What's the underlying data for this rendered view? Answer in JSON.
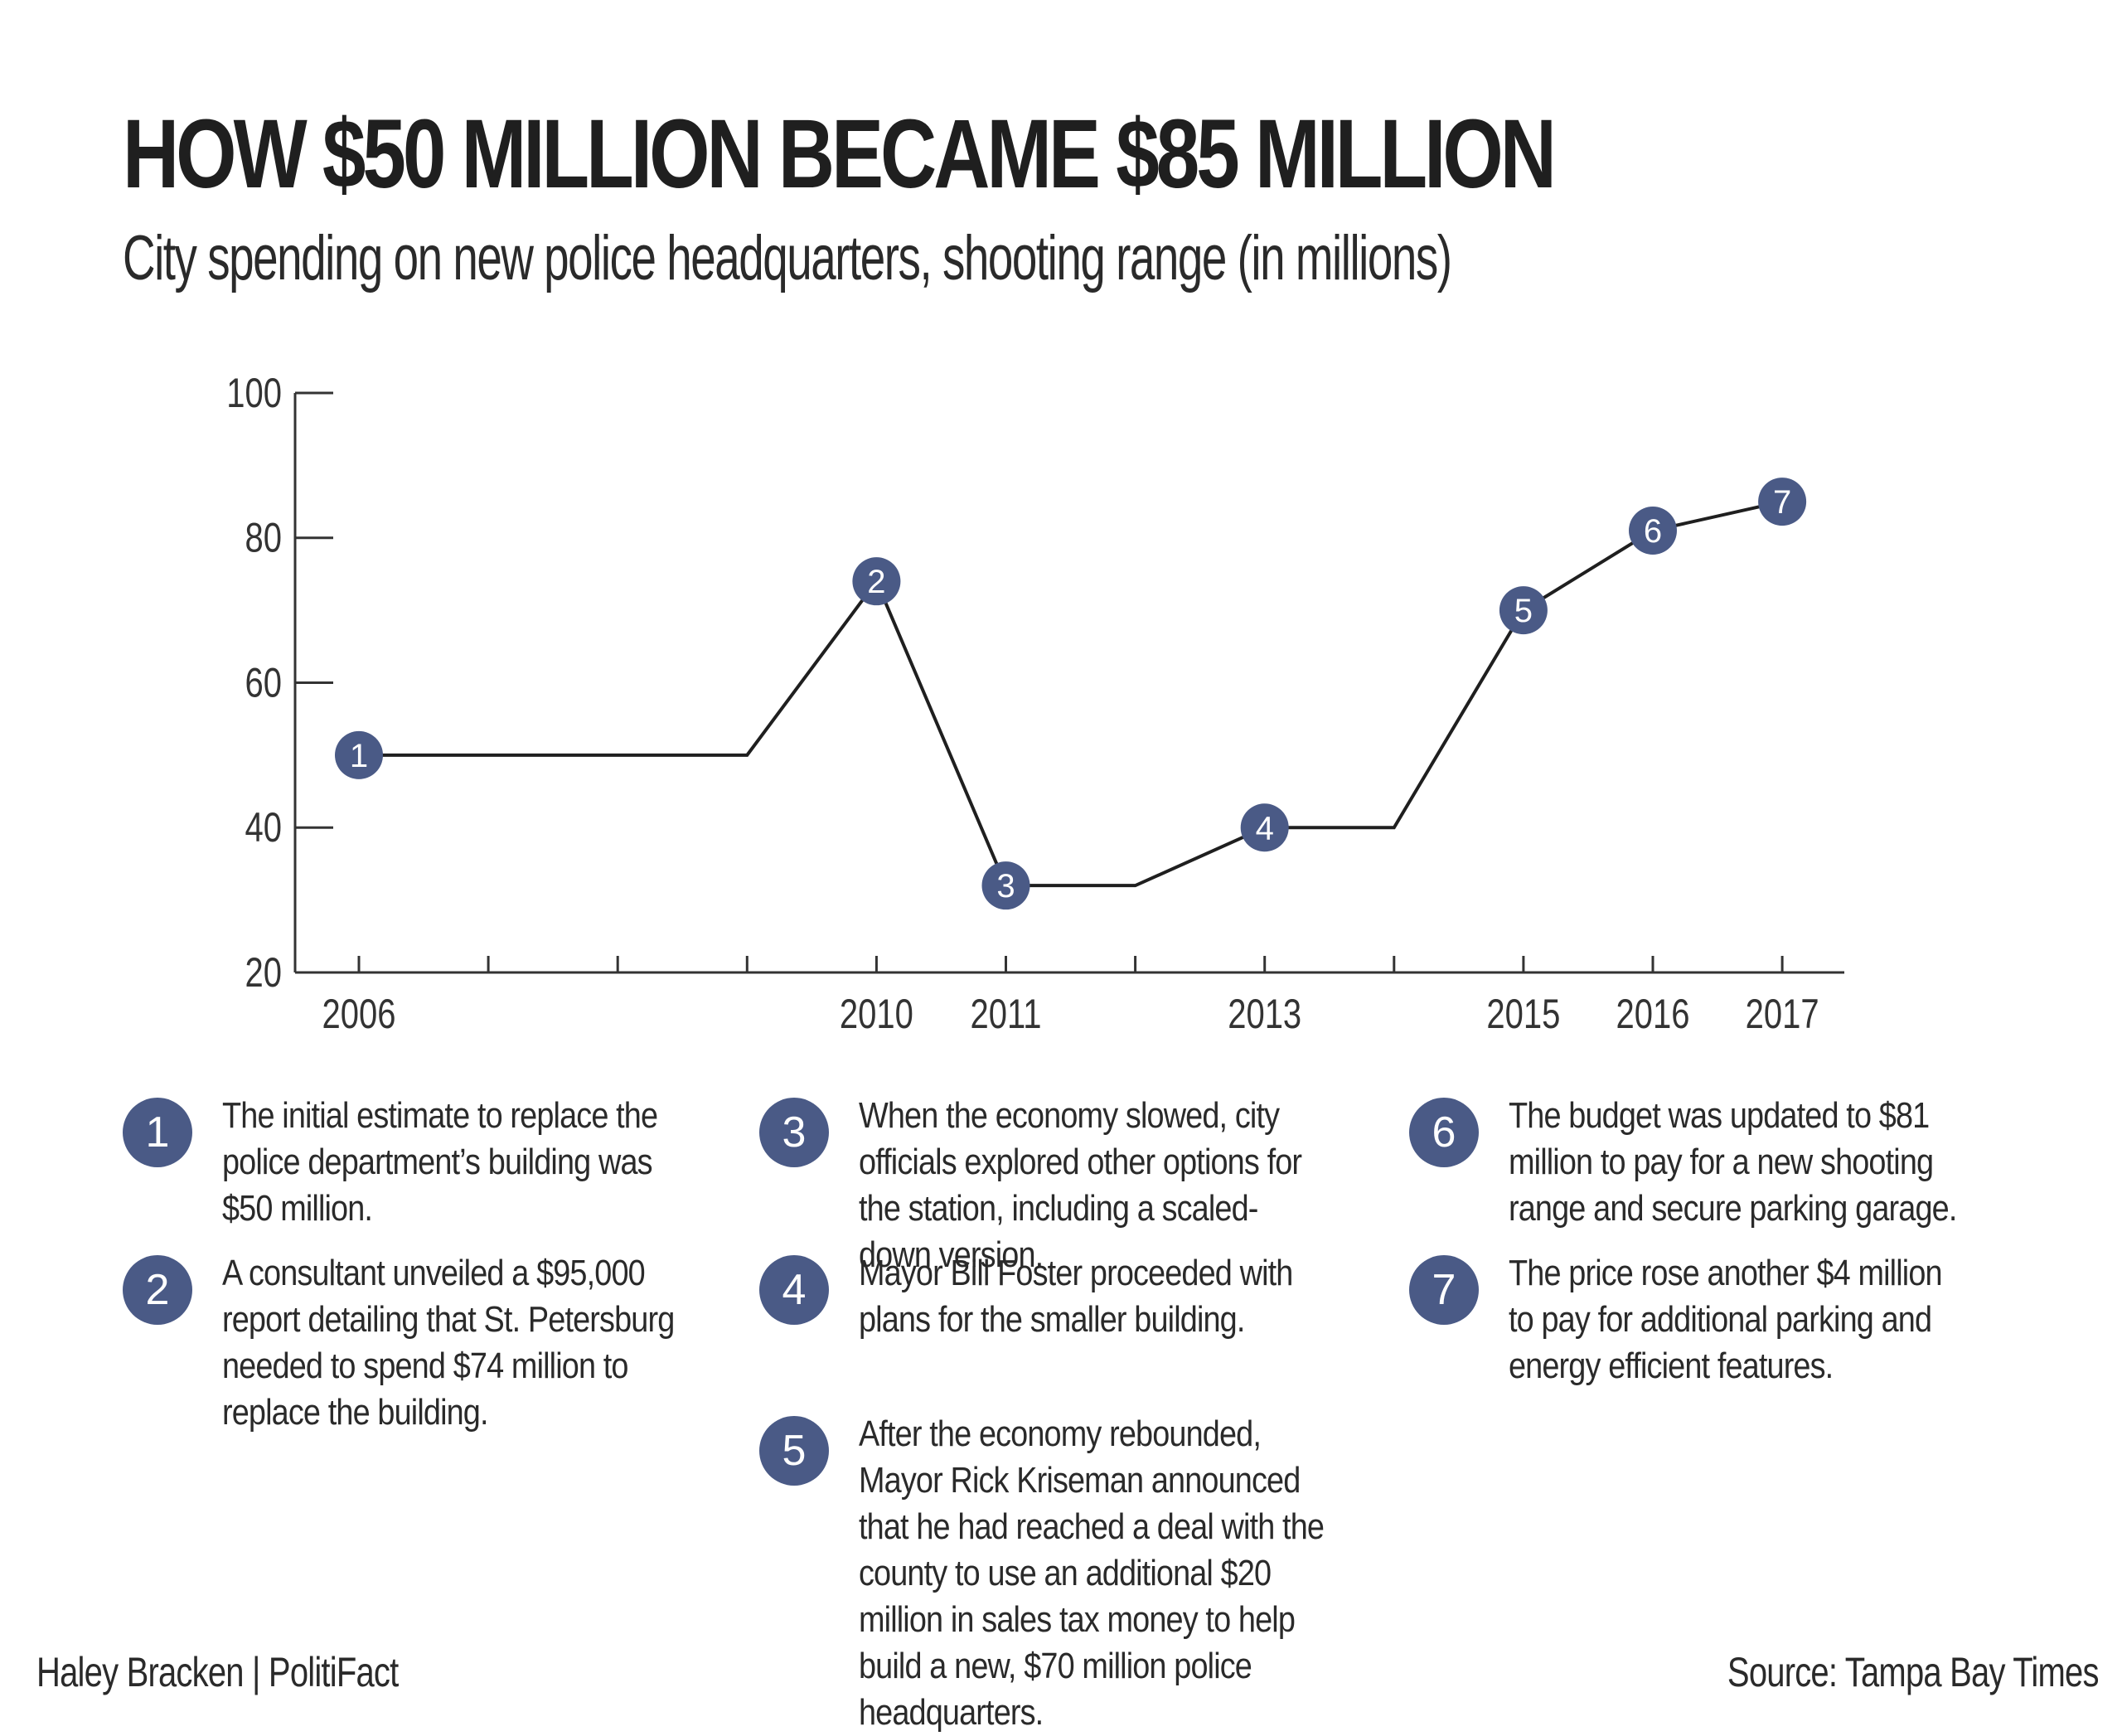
{
  "chart_data": {
    "type": "line",
    "title": "HOW $50 MILLION BECAME $85 MILLION",
    "subtitle": "City spending on new police headquarters, shooting range (in millions)",
    "xlabel": "",
    "ylabel": "",
    "ylim": [
      20,
      100
    ],
    "yticks": [
      20,
      40,
      60,
      80,
      100
    ],
    "xlim": [
      2006,
      2018
    ],
    "x_ticks": [
      2006,
      2007,
      2008,
      2009,
      2010,
      2011,
      2012,
      2013,
      2014,
      2015,
      2016,
      2017
    ],
    "x_tick_labels": [
      {
        "x": 2006,
        "label": "2006"
      },
      {
        "x": 2010,
        "label": "2010"
      },
      {
        "x": 2011,
        "label": "2011"
      },
      {
        "x": 2013,
        "label": "2013"
      },
      {
        "x": 2015,
        "label": "2015"
      },
      {
        "x": 2016,
        "label": "2016"
      },
      {
        "x": 2017,
        "label": "2017"
      }
    ],
    "series": [
      {
        "name": "Spending",
        "color": "#1f1f1f",
        "points": [
          {
            "x": 2006,
            "y": 50,
            "marker": "1"
          },
          {
            "x": 2009,
            "y": 50
          },
          {
            "x": 2010,
            "y": 74,
            "marker": "2"
          },
          {
            "x": 2011,
            "y": 32,
            "marker": "3"
          },
          {
            "x": 2012,
            "y": 32
          },
          {
            "x": 2013,
            "y": 40,
            "marker": "4"
          },
          {
            "x": 2014,
            "y": 40
          },
          {
            "x": 2015,
            "y": 70,
            "marker": "5"
          },
          {
            "x": 2016,
            "y": 81,
            "marker": "6"
          },
          {
            "x": 2017,
            "y": 85,
            "marker": "7"
          }
        ]
      }
    ],
    "marker_color": "#4a5a86",
    "grid": false
  },
  "notes": [
    {
      "num": "1",
      "text": "The initial estimate to replace the police department’s building was $50 million."
    },
    {
      "num": "2",
      "text": "A consultant unveiled a $95,000 report detailing that St. Petersburg needed to spend $74 million to replace the building."
    },
    {
      "num": "3",
      "text": "When the economy slowed, city officials explored other options for the station, including a scaled-down version."
    },
    {
      "num": "4",
      "text": "Mayor Bill Foster proceeded with plans for the smaller building."
    },
    {
      "num": "5",
      "text": "After the economy rebounded, Mayor Rick Kriseman announced that he had reached a deal with the county to use an additional $20 million in sales tax money to help build a new, $70 million police headquarters."
    },
    {
      "num": "6",
      "text": "The budget was updated to $81 million to pay for a new shooting range and secure parking garage."
    },
    {
      "num": "7",
      "text": "The price rose another $4 million to pay for additional parking and energy efficient features."
    }
  ],
  "footer": {
    "credit": "Haley Bracken | PolitiFact",
    "source": "Source: Tampa Bay Times"
  }
}
